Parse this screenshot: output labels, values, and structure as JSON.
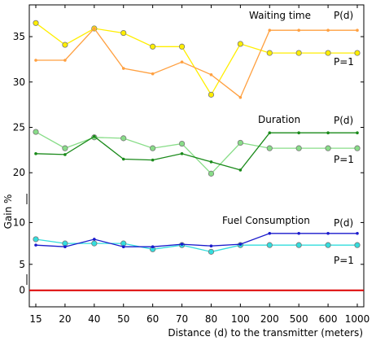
{
  "chart_data": {
    "type": "line",
    "xlabel": "Distance (d) to the transmitter (meters)",
    "ylabel": "Gain %",
    "categories": [
      "15",
      "20",
      "40",
      "50",
      "60",
      "70",
      "80",
      "100",
      "200",
      "500",
      "600",
      "1000"
    ],
    "yticks": [
      "0",
      "5",
      "10",
      "20",
      "25",
      "30",
      "35"
    ],
    "y_axis_segments": [
      {
        "range": [
          -0.5,
          1.2
        ],
        "ticks": [
          0
        ]
      },
      {
        "range": [
          4.2,
          11.6
        ],
        "ticks": [
          5,
          10
        ]
      },
      {
        "range": [
          17.6,
          38.5
        ],
        "ticks": [
          20,
          25,
          30,
          35
        ]
      }
    ],
    "grid": false,
    "groups": [
      {
        "title": "Waiting time",
        "labels": {
          "pd": "P(d)",
          "p1": "P=1"
        },
        "colors": {
          "pd": "#ffa040",
          "p1": "#ffee00"
        },
        "series": [
          {
            "key": "pd",
            "values": [
              32.4,
              32.4,
              35.9,
              31.5,
              30.9,
              32.2,
              30.8,
              28.3,
              35.7,
              35.7,
              35.7,
              35.7
            ]
          },
          {
            "key": "p1",
            "values": [
              36.5,
              34.1,
              35.9,
              35.4,
              33.9,
              33.9,
              28.6,
              34.2,
              33.2,
              33.2,
              33.2,
              33.2
            ]
          }
        ]
      },
      {
        "title": "Duration",
        "labels": {
          "pd": "P(d)",
          "p1": "P=1"
        },
        "colors": {
          "pd": "#1a8a1a",
          "p1": "#88dd88"
        },
        "series": [
          {
            "key": "pd",
            "values": [
              22.1,
              22.0,
              24.0,
              21.5,
              21.4,
              22.1,
              21.2,
              20.3,
              24.4,
              24.4,
              24.4,
              24.4
            ]
          },
          {
            "key": "p1",
            "values": [
              24.5,
              22.7,
              23.9,
              23.8,
              22.7,
              23.2,
              19.9,
              23.3,
              22.7,
              22.7,
              22.7,
              22.7
            ]
          }
        ]
      },
      {
        "title": "Fuel Consumption",
        "labels": {
          "pd": "P(d)",
          "p1": "P=1"
        },
        "colors": {
          "pd": "#1a1acc",
          "p1": "#33dddd"
        },
        "series": [
          {
            "key": "pd",
            "values": [
              7.3,
              7.1,
              8.0,
              7.1,
              7.1,
              7.4,
              7.2,
              7.4,
              8.7,
              8.7,
              8.7,
              8.7
            ]
          },
          {
            "key": "p1",
            "values": [
              8.0,
              7.5,
              7.5,
              7.5,
              6.8,
              7.3,
              6.5,
              7.3,
              7.3,
              7.3,
              7.3,
              7.3
            ]
          }
        ]
      }
    ],
    "baseline": {
      "value": 0,
      "color": "#dd0000"
    }
  }
}
